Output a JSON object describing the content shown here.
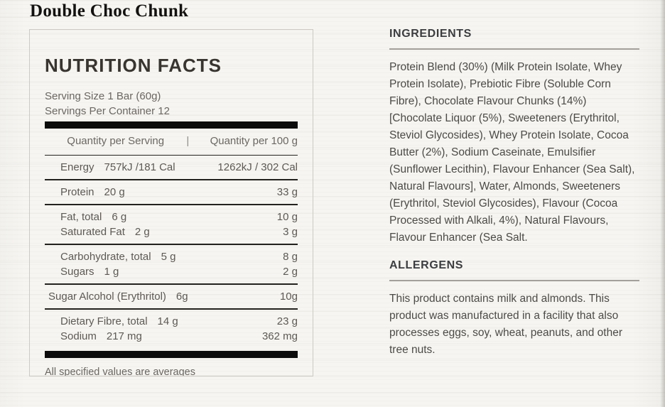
{
  "product": {
    "title": "Double Choc Chunk"
  },
  "nutrition": {
    "title": "NUTRITION FACTS",
    "serving_size": "Serving Size 1 Bar (60g)",
    "servings_per_container": "Servings Per Container 12",
    "columns": [
      "Quantity per Serving",
      "Quantity per 100 g"
    ],
    "column_separator": "|",
    "groups": [
      {
        "flush": false,
        "rows": [
          {
            "label": "Energy",
            "serving": "757kJ /181 Cal",
            "per100": "1262kJ / 302 Cal"
          }
        ]
      },
      {
        "flush": false,
        "rows": [
          {
            "label": "Protein",
            "serving": "20 g",
            "per100": "33 g"
          }
        ]
      },
      {
        "flush": false,
        "rows": [
          {
            "label": "Fat, total",
            "serving": "6 g",
            "per100": "10 g"
          },
          {
            "label": "Saturated Fat",
            "serving": "2 g",
            "per100": "3 g"
          }
        ]
      },
      {
        "flush": false,
        "rows": [
          {
            "label": "Carbohydrate, total",
            "serving": "5 g",
            "per100": "8 g"
          },
          {
            "label": "Sugars",
            "serving": "1 g",
            "per100": "2 g"
          }
        ]
      },
      {
        "flush": true,
        "rows": [
          {
            "label": "Sugar Alcohol (Erythritol)",
            "serving": "6g",
            "per100": "10g"
          }
        ]
      },
      {
        "flush": false,
        "rows": [
          {
            "label": "Dietary Fibre, total",
            "serving": "14 g",
            "per100": "23 g"
          },
          {
            "label": "Sodium",
            "serving": "217 mg",
            "per100": "362 mg"
          }
        ]
      }
    ],
    "footnote": "All specified values are averages"
  },
  "ingredients": {
    "heading": "INGREDIENTS",
    "text": "Protein Blend (30%) (Milk Protein Isolate, Whey Protein Isolate), Prebiotic Fibre (Soluble Corn Fibre), Chocolate Flavour Chunks (14%) [Chocolate Liquor (5%), Sweeteners (Erythritol, Steviol Glycosides), Whey Protein Isolate, Cocoa Butter (2%), Sodium Caseinate, Emulsifier (Sunflower Lecithin), Flavour Enhancer (Sea Salt), Natural Flavours], Water, Almonds, Sweeteners (Erythritol, Steviol Glycosides), Flavour (Cocoa Processed with Alkali, 4%), Natural Flavours, Flavour Enhancer (Sea Salt."
  },
  "allergens": {
    "heading": "ALLERGENS",
    "text": "This product contains milk and almonds. This product was manufactured in a facility that also processes eggs, soy, wheat, peanuts, and other tree nuts."
  },
  "colors": {
    "page_background": "#f6f5f1",
    "panel_border": "#cdcac4",
    "divider_bar": "#0c0c0c",
    "table_text": "#5d5955",
    "muted_text": "#6b6763",
    "heading_text": "#38342f",
    "info_text": "#4c4a47",
    "rule": "#a3a09b"
  }
}
